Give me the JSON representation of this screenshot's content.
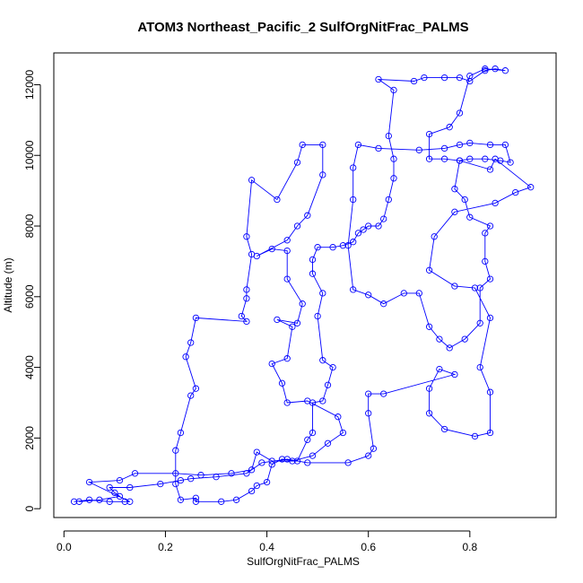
{
  "chart_data": {
    "type": "scatter",
    "title": "ATOM3 Northeast_Pacific_2 SulfOrgNitFrac_PALMS",
    "xlabel": "SulfOrgNitFrac_PALMS",
    "ylabel": "Altitude (m)",
    "xlim": [
      -0.02,
      0.97
    ],
    "ylim": [
      -250,
      12900
    ],
    "xticks": [
      0.0,
      0.2,
      0.4,
      0.6,
      0.8
    ],
    "xtick_labels": [
      "0.0",
      "0.2",
      "0.4",
      "0.6",
      "0.8"
    ],
    "yticks": [
      0,
      2000,
      4000,
      6000,
      8000,
      10000,
      12000
    ],
    "ytick_labels": [
      "0",
      "2000",
      "4000",
      "6000",
      "8000",
      "10000",
      "12000"
    ],
    "grid": false,
    "series_color": "#0000ff",
    "marker": "open-circle",
    "connected": true,
    "points": [
      [
        0.02,
        200
      ],
      [
        0.05,
        250
      ],
      [
        0.09,
        200
      ],
      [
        0.12,
        200
      ],
      [
        0.13,
        200
      ],
      [
        0.05,
        750
      ],
      [
        0.11,
        800
      ],
      [
        0.14,
        1000
      ],
      [
        0.22,
        1000
      ],
      [
        0.27,
        950
      ],
      [
        0.33,
        1000
      ],
      [
        0.37,
        1100
      ],
      [
        0.38,
        1600
      ],
      [
        0.41,
        1350
      ],
      [
        0.45,
        1350
      ],
      [
        0.49,
        1500
      ],
      [
        0.52,
        1850
      ],
      [
        0.55,
        2150
      ],
      [
        0.54,
        2600
      ],
      [
        0.48,
        3050
      ],
      [
        0.44,
        3000
      ],
      [
        0.43,
        3550
      ],
      [
        0.41,
        4100
      ],
      [
        0.44,
        4250
      ],
      [
        0.45,
        5150
      ],
      [
        0.42,
        5350
      ],
      [
        0.46,
        5250
      ],
      [
        0.47,
        5800
      ],
      [
        0.44,
        6500
      ],
      [
        0.44,
        7300
      ],
      [
        0.41,
        7350
      ],
      [
        0.38,
        7150
      ],
      [
        0.44,
        7600
      ],
      [
        0.46,
        8000
      ],
      [
        0.48,
        8300
      ],
      [
        0.51,
        9450
      ],
      [
        0.51,
        10300
      ],
      [
        0.47,
        10300
      ],
      [
        0.46,
        9800
      ],
      [
        0.42,
        8750
      ],
      [
        0.37,
        9300
      ],
      [
        0.36,
        7700
      ],
      [
        0.37,
        7200
      ],
      [
        0.36,
        6200
      ],
      [
        0.36,
        5950
      ],
      [
        0.35,
        5450
      ],
      [
        0.36,
        5300
      ],
      [
        0.26,
        5400
      ],
      [
        0.25,
        4700
      ],
      [
        0.24,
        4300
      ],
      [
        0.26,
        3400
      ],
      [
        0.25,
        3200
      ],
      [
        0.23,
        2150
      ],
      [
        0.22,
        1650
      ],
      [
        0.22,
        700
      ],
      [
        0.23,
        250
      ],
      [
        0.26,
        300
      ],
      [
        0.26,
        200
      ],
      [
        0.31,
        200
      ],
      [
        0.34,
        250
      ],
      [
        0.37,
        500
      ],
      [
        0.38,
        650
      ],
      [
        0.4,
        750
      ],
      [
        0.41,
        1250
      ],
      [
        0.43,
        1400
      ],
      [
        0.46,
        1350
      ],
      [
        0.48,
        1950
      ],
      [
        0.49,
        2150
      ],
      [
        0.49,
        3000
      ],
      [
        0.51,
        3050
      ],
      [
        0.52,
        3500
      ],
      [
        0.53,
        4000
      ],
      [
        0.51,
        4200
      ],
      [
        0.5,
        5450
      ],
      [
        0.51,
        6100
      ],
      [
        0.49,
        6650
      ],
      [
        0.49,
        7050
      ],
      [
        0.5,
        7400
      ],
      [
        0.53,
        7400
      ],
      [
        0.55,
        7450
      ],
      [
        0.57,
        7550
      ],
      [
        0.58,
        7800
      ],
      [
        0.59,
        7900
      ],
      [
        0.6,
        8000
      ],
      [
        0.62,
        8000
      ],
      [
        0.63,
        8200
      ],
      [
        0.64,
        8750
      ],
      [
        0.65,
        9350
      ],
      [
        0.65,
        9900
      ],
      [
        0.64,
        10550
      ],
      [
        0.65,
        11850
      ],
      [
        0.62,
        12150
      ],
      [
        0.69,
        12100
      ],
      [
        0.71,
        12200
      ],
      [
        0.75,
        12200
      ],
      [
        0.78,
        12200
      ],
      [
        0.8,
        12100
      ],
      [
        0.83,
        12400
      ],
      [
        0.85,
        12450
      ],
      [
        0.87,
        12400
      ],
      [
        0.83,
        12450
      ],
      [
        0.8,
        12250
      ],
      [
        0.78,
        11200
      ],
      [
        0.76,
        10800
      ],
      [
        0.72,
        10600
      ],
      [
        0.72,
        9900
      ],
      [
        0.75,
        9900
      ],
      [
        0.78,
        9850
      ],
      [
        0.8,
        9900
      ],
      [
        0.83,
        9900
      ],
      [
        0.86,
        9850
      ],
      [
        0.88,
        9800
      ],
      [
        0.87,
        10300
      ],
      [
        0.84,
        10300
      ],
      [
        0.8,
        10350
      ],
      [
        0.78,
        10300
      ],
      [
        0.75,
        10200
      ],
      [
        0.7,
        10150
      ],
      [
        0.62,
        10200
      ],
      [
        0.58,
        10300
      ],
      [
        0.57,
        9650
      ],
      [
        0.57,
        8750
      ],
      [
        0.56,
        7450
      ],
      [
        0.57,
        6200
      ],
      [
        0.6,
        6050
      ],
      [
        0.63,
        5800
      ],
      [
        0.67,
        6100
      ],
      [
        0.7,
        6100
      ],
      [
        0.72,
        5150
      ],
      [
        0.74,
        4800
      ],
      [
        0.76,
        4550
      ],
      [
        0.79,
        4800
      ],
      [
        0.82,
        5250
      ],
      [
        0.82,
        6250
      ],
      [
        0.84,
        6500
      ],
      [
        0.83,
        7000
      ],
      [
        0.83,
        7800
      ],
      [
        0.84,
        8000
      ],
      [
        0.8,
        8250
      ],
      [
        0.79,
        8750
      ],
      [
        0.77,
        9050
      ],
      [
        0.78,
        9850
      ],
      [
        0.84,
        9600
      ],
      [
        0.85,
        9900
      ],
      [
        0.92,
        9100
      ],
      [
        0.89,
        8950
      ],
      [
        0.85,
        8650
      ],
      [
        0.77,
        8400
      ],
      [
        0.73,
        7700
      ],
      [
        0.72,
        6750
      ],
      [
        0.77,
        6300
      ],
      [
        0.81,
        6250
      ],
      [
        0.84,
        5400
      ],
      [
        0.82,
        4000
      ],
      [
        0.84,
        3300
      ],
      [
        0.84,
        2150
      ],
      [
        0.81,
        2050
      ],
      [
        0.75,
        2250
      ],
      [
        0.72,
        2700
      ],
      [
        0.72,
        3400
      ],
      [
        0.74,
        3950
      ],
      [
        0.77,
        3800
      ],
      [
        0.63,
        3250
      ],
      [
        0.6,
        3250
      ],
      [
        0.6,
        2700
      ],
      [
        0.61,
        1700
      ],
      [
        0.6,
        1500
      ],
      [
        0.56,
        1300
      ],
      [
        0.48,
        1300
      ],
      [
        0.44,
        1400
      ],
      [
        0.39,
        1300
      ],
      [
        0.36,
        1000
      ],
      [
        0.3,
        900
      ],
      [
        0.25,
        850
      ],
      [
        0.23,
        800
      ],
      [
        0.19,
        700
      ],
      [
        0.13,
        600
      ],
      [
        0.09,
        600
      ],
      [
        0.1,
        450
      ],
      [
        0.11,
        350
      ],
      [
        0.07,
        250
      ],
      [
        0.03,
        200
      ]
    ]
  }
}
